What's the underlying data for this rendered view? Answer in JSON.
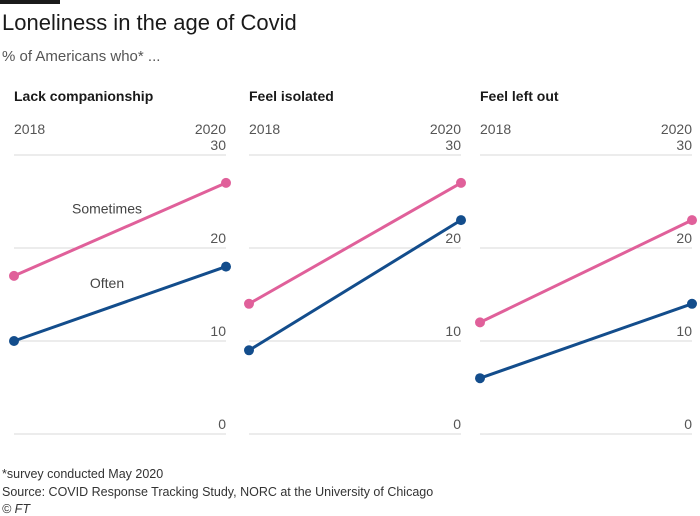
{
  "title": "Loneliness in the age of Covid",
  "subtitle": "% of Americans who* ...",
  "footnotes": {
    "survey": "*survey conducted May 2020",
    "source": "Source: COVID Response Tracking Study, NORC at the University of Chicago",
    "credit": "© FT"
  },
  "colors": {
    "sometimes": "#e0609a",
    "often": "#134d8c",
    "grid": "#d9d9d9",
    "tick": "#555555"
  },
  "chart_data": [
    {
      "type": "line",
      "title": "Lack companionship",
      "x": [
        "2018",
        "2020"
      ],
      "ylim": [
        0,
        30
      ],
      "yticks": [
        "0",
        "10",
        "20",
        "30"
      ],
      "series": [
        {
          "name": "Sometimes",
          "values": [
            17,
            27
          ]
        },
        {
          "name": "Often",
          "values": [
            10,
            18
          ]
        }
      ]
    },
    {
      "type": "line",
      "title": "Feel isolated",
      "x": [
        "2018",
        "2020"
      ],
      "ylim": [
        0,
        30
      ],
      "yticks": [
        "0",
        "10",
        "20",
        "30"
      ],
      "series": [
        {
          "values": [
            14,
            27
          ]
        },
        {
          "values": [
            9,
            23
          ]
        }
      ]
    },
    {
      "type": "line",
      "title": "Feel left out",
      "x": [
        "2018",
        "2020"
      ],
      "ylim": [
        0,
        30
      ],
      "yticks": [
        "0",
        "10",
        "20",
        "30"
      ],
      "series": [
        {
          "values": [
            12,
            23
          ]
        },
        {
          "values": [
            6,
            14
          ]
        }
      ]
    }
  ]
}
